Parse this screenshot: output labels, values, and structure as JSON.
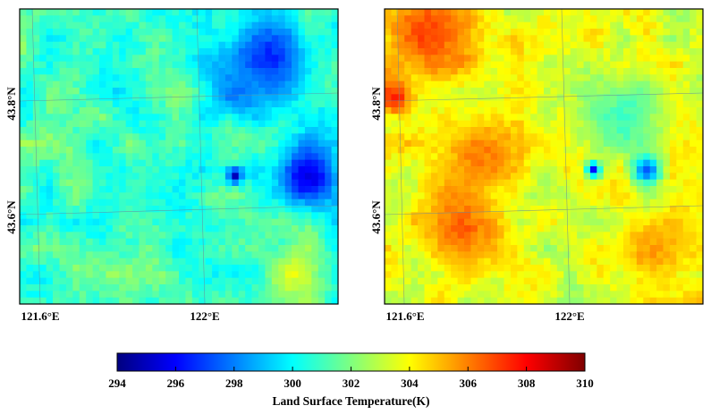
{
  "chart_data": [
    {
      "type": "heatmap",
      "panel": "left",
      "title": "",
      "x_ticks": [
        "121.6°E",
        "122°E"
      ],
      "y_ticks": [
        "43.8°N",
        "43.6°N"
      ],
      "grid": true,
      "mean_temperature_K": 301.0,
      "cold_spots": [
        {
          "col": 37,
          "row": 7,
          "value": 296.5,
          "spread": 4.5
        },
        {
          "col": 32,
          "row": 12,
          "value": 298.0,
          "spread": 3.0
        },
        {
          "col": 43,
          "row": 25,
          "value": 295.5,
          "spread": 3.5
        },
        {
          "col": 32,
          "row": 25,
          "value": 295.0,
          "spread": 0.8
        }
      ],
      "warm_spots": [
        {
          "col": 41,
          "row": 40,
          "value": 303.5,
          "spread": 3.0
        }
      ]
    },
    {
      "type": "heatmap",
      "panel": "right",
      "title": "",
      "x_ticks": [
        "121.6°E",
        "122°E"
      ],
      "y_ticks": [
        "43.8°N",
        "43.6°N"
      ],
      "grid": true,
      "mean_temperature_K": 303.5,
      "hot_spots": [
        {
          "col": 6,
          "row": 3,
          "value": 307.0,
          "spread": 5.0
        },
        {
          "col": 1,
          "row": 13,
          "value": 307.5,
          "spread": 2.0
        },
        {
          "col": 14,
          "row": 22,
          "value": 306.0,
          "spread": 4.0
        },
        {
          "col": 11,
          "row": 33,
          "value": 306.5,
          "spread": 4.5
        },
        {
          "col": 40,
          "row": 36,
          "value": 305.5,
          "spread": 4.0
        }
      ],
      "cold_spots": [
        {
          "col": 39,
          "row": 24,
          "value": 297.0,
          "spread": 1.5
        },
        {
          "col": 31,
          "row": 24,
          "value": 296.0,
          "spread": 0.8
        },
        {
          "col": 36,
          "row": 16,
          "value": 301.0,
          "spread": 4.0
        }
      ]
    }
  ],
  "colorbar": {
    "min": 294,
    "max": 310,
    "ticks": [
      "294",
      "296",
      "298",
      "300",
      "302",
      "304",
      "306",
      "308",
      "310"
    ],
    "label": "Land Surface Temperature(K)",
    "colors": [
      "#00007f",
      "#0000ff",
      "#007fff",
      "#00ffff",
      "#7fff7f",
      "#ffff00",
      "#ff7f00",
      "#ff0000",
      "#7f0000"
    ]
  }
}
